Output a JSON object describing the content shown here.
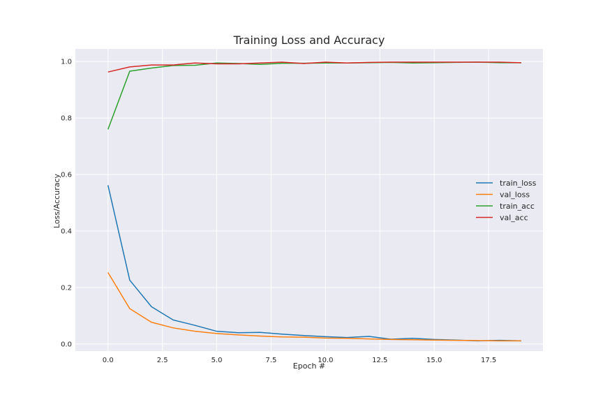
{
  "chart_data": {
    "type": "line",
    "title": "Training Loss and Accuracy",
    "xlabel": "Epoch #",
    "ylabel": "Loss/Accuracy",
    "xlim": [
      -1.5,
      20.0
    ],
    "ylim": [
      -0.025,
      1.045
    ],
    "xticks": [
      0.0,
      2.5,
      5.0,
      7.5,
      10.0,
      12.5,
      15.0,
      17.5
    ],
    "xtick_labels": [
      "0.0",
      "2.5",
      "5.0",
      "7.5",
      "10.0",
      "12.5",
      "15.0",
      "17.5"
    ],
    "yticks": [
      0.0,
      0.2,
      0.4,
      0.6,
      0.8,
      1.0
    ],
    "ytick_labels": [
      "0.0",
      "0.2",
      "0.4",
      "0.6",
      "0.8",
      "1.0"
    ],
    "grid": true,
    "legend_position": "center-right",
    "x": [
      0,
      1,
      2,
      3,
      4,
      5,
      6,
      7,
      8,
      9,
      10,
      11,
      12,
      13,
      14,
      15,
      16,
      17,
      18,
      19
    ],
    "series": [
      {
        "name": "train_loss",
        "color": "#1f77b4",
        "values": [
          0.562,
          0.226,
          0.132,
          0.085,
          0.066,
          0.045,
          0.04,
          0.041,
          0.035,
          0.03,
          0.026,
          0.023,
          0.027,
          0.017,
          0.02,
          0.016,
          0.014,
          0.011,
          0.013,
          0.011
        ]
      },
      {
        "name": "val_loss",
        "color": "#ff7f0e",
        "values": [
          0.253,
          0.125,
          0.077,
          0.057,
          0.045,
          0.037,
          0.032,
          0.028,
          0.025,
          0.024,
          0.021,
          0.02,
          0.018,
          0.016,
          0.015,
          0.014,
          0.013,
          0.012,
          0.011,
          0.011
        ]
      },
      {
        "name": "train_acc",
        "color": "#2ca02c",
        "values": [
          0.76,
          0.966,
          0.977,
          0.986,
          0.987,
          0.995,
          0.993,
          0.99,
          0.994,
          0.994,
          0.995,
          0.995,
          0.996,
          0.997,
          0.995,
          0.996,
          0.997,
          0.998,
          0.996,
          0.996
        ]
      },
      {
        "name": "val_acc",
        "color": "#d62728",
        "values": [
          0.963,
          0.981,
          0.988,
          0.988,
          0.995,
          0.992,
          0.992,
          0.995,
          0.998,
          0.993,
          0.998,
          0.995,
          0.997,
          0.998,
          0.998,
          0.998,
          0.998,
          0.998,
          0.998,
          0.996
        ]
      }
    ]
  },
  "colors": {
    "plot_background": "#eaeaf2",
    "grid": "#ffffff",
    "page_background": "#ffffff"
  }
}
